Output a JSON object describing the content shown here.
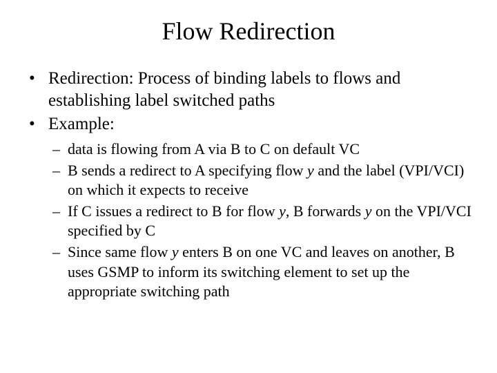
{
  "title": "Flow Redirection",
  "bullets": [
    "Redirection: Process of binding labels to flows and establishing label switched paths",
    "Example:"
  ],
  "sub": {
    "s1": "data is flowing from A via B to C on default VC",
    "s2a": "B sends a redirect to A specifying flow ",
    "s2b": " and the label (VPI/VCI) on which it expects to receive",
    "s3a": "If C issues a redirect to B for flow ",
    "s3b": ", B forwards ",
    "s3c": " on the VPI/VCI specified by C",
    "s4a": "Since same flow ",
    "s4b": " enters B on one VC and leaves on another, B uses GSMP to inform its switching element to set up the appropriate switching path",
    "y": "y"
  },
  "style": {
    "bg": "#ffffff",
    "fg": "#000000",
    "title_fontsize": 36,
    "body_fontsize": 25,
    "sub_fontsize": 22,
    "font_family": "Times New Roman"
  }
}
